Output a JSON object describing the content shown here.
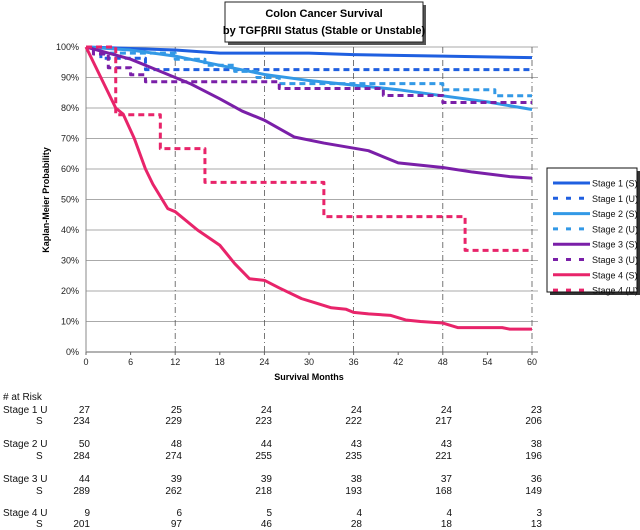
{
  "chart_data": {
    "type": "line",
    "title": [
      "Colon Cancer Survival",
      "by TGFβRII Status (Stable or Unstable)"
    ],
    "xlabel": "Survival Months",
    "ylabel": "Kaplan-Meier Probability",
    "xlim": [
      0,
      60
    ],
    "ylim": [
      0,
      100
    ],
    "x_ticks": [
      0,
      6,
      12,
      18,
      24,
      30,
      36,
      42,
      48,
      54,
      60
    ],
    "y_ticks": [
      "0%",
      "10%",
      "20%",
      "30%",
      "40%",
      "50%",
      "60%",
      "70%",
      "80%",
      "90%",
      "100%"
    ],
    "grid": "horizontal solid every 10%, vertical dashed every 12 months",
    "legend_position": "right",
    "series": [
      {
        "name": "Stage 1 (S)",
        "color": "#1f5fe0",
        "style": "solid",
        "x": [
          0,
          6,
          12,
          18,
          30,
          36,
          48,
          60
        ],
        "y": [
          100,
          99.5,
          99,
          98,
          98,
          97.5,
          97,
          96.5
        ]
      },
      {
        "name": "Stage 1 (U)",
        "color": "#1f5fe0",
        "style": "dashed",
        "x": [
          0,
          2,
          8,
          60
        ],
        "y": [
          100,
          96.3,
          92.6,
          92.6
        ]
      },
      {
        "name": "Stage 2 (S)",
        "color": "#3399e6",
        "style": "solid",
        "x": [
          0,
          6,
          12,
          18,
          24,
          30,
          36,
          42,
          48,
          54,
          60
        ],
        "y": [
          100,
          99,
          97,
          94,
          91,
          89,
          87.5,
          86,
          84,
          82,
          79.5
        ]
      },
      {
        "name": "Stage 2 (U)",
        "color": "#3399e6",
        "style": "dashed",
        "x": [
          0,
          2,
          12,
          16,
          20,
          23,
          26,
          48,
          55,
          60
        ],
        "y": [
          100,
          98,
          96,
          94,
          92,
          90,
          88,
          86,
          84,
          84
        ]
      },
      {
        "name": "Stage 3 (S)",
        "color": "#7a1fa8",
        "style": "solid",
        "x": [
          0,
          3,
          6,
          10,
          14,
          18,
          21,
          24,
          28,
          32,
          38,
          42,
          48,
          52,
          57,
          60
        ],
        "y": [
          100,
          98,
          96,
          92,
          88,
          83,
          79,
          76,
          70.5,
          68.5,
          66,
          62,
          60.5,
          59,
          57.5,
          57
        ]
      },
      {
        "name": "Stage 3 (U)",
        "color": "#7a1fa8",
        "style": "dashed",
        "x": [
          0,
          1,
          3,
          6,
          8,
          26,
          40,
          48,
          60
        ],
        "y": [
          100,
          97.7,
          93.2,
          90.9,
          88.6,
          86.4,
          84.1,
          81.8,
          81.8
        ]
      },
      {
        "name": "Stage 4 (S)",
        "color": "#e8246a",
        "style": "solid",
        "x": [
          0,
          1,
          2,
          3,
          4,
          5,
          6.5,
          8,
          9,
          11,
          12,
          15,
          18,
          20,
          22,
          24,
          26,
          29,
          31,
          33,
          35,
          36,
          38,
          41,
          43,
          45,
          48,
          50,
          56,
          57,
          60
        ],
        "y": [
          100,
          95,
          90,
          85,
          80,
          78,
          70,
          60,
          55,
          47,
          46,
          40,
          35,
          29,
          24,
          23.5,
          21,
          17.5,
          16,
          14.5,
          14,
          13,
          12.5,
          12,
          10.5,
          10,
          9.5,
          8,
          8,
          7.5,
          7.5
        ]
      },
      {
        "name": "Stage 4 (U)",
        "color": "#e8246a",
        "style": "dashed",
        "x": [
          0,
          4,
          10,
          16,
          32,
          51,
          60
        ],
        "y": [
          100,
          77.8,
          66.7,
          55.6,
          44.4,
          33.3,
          33.3
        ]
      }
    ]
  },
  "at_risk": {
    "header": "# at Risk",
    "rows": [
      {
        "label": "Stage 1 U",
        "values": [
          "27",
          "25",
          "24",
          "24",
          "24",
          "23"
        ]
      },
      {
        "label": "S",
        "values": [
          "234",
          "229",
          "223",
          "222",
          "217",
          "206"
        ]
      },
      {
        "label": "Stage 2 U",
        "values": [
          "50",
          "48",
          "44",
          "43",
          "43",
          "38"
        ]
      },
      {
        "label": "S",
        "values": [
          "284",
          "274",
          "255",
          "235",
          "221",
          "196"
        ]
      },
      {
        "label": "Stage 3 U",
        "values": [
          "44",
          "39",
          "39",
          "38",
          "37",
          "36"
        ]
      },
      {
        "label": "S",
        "values": [
          "289",
          "262",
          "218",
          "193",
          "168",
          "149"
        ]
      },
      {
        "label": "Stage 4 U",
        "values": [
          "9",
          "6",
          "5",
          "4",
          "4",
          "3"
        ]
      },
      {
        "label": "S",
        "values": [
          "201",
          "97",
          "46",
          "28",
          "18",
          "13"
        ]
      }
    ]
  }
}
